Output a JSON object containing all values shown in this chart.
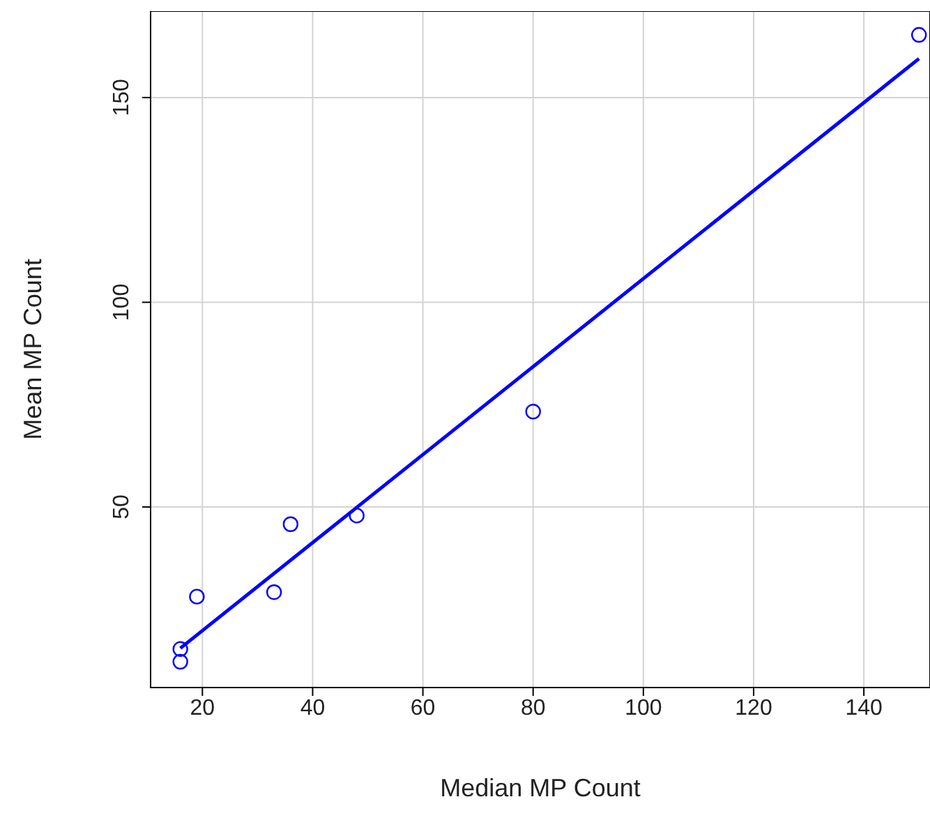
{
  "chart_data": {
    "type": "scatter",
    "xlabel": "Median MP Count",
    "ylabel": "Mean MP Count",
    "xlim": [
      10.6,
      152
    ],
    "ylim": [
      5.9,
      171.1
    ],
    "xticks": [
      20,
      40,
      60,
      80,
      100,
      120,
      140
    ],
    "yticks": [
      50,
      100,
      150
    ],
    "grid": true,
    "marker": "circle",
    "series": [
      {
        "color": "#0000ff",
        "x": [
          16,
          16,
          19,
          33,
          36,
          48,
          80,
          150
        ],
        "values": [
          12.2,
          15.3,
          28.1,
          29.2,
          45.8,
          47.9,
          73.3,
          165.3
        ]
      },
      {
        "type": "line",
        "color": "#0000ff",
        "marker": "none",
        "x": [
          16,
          150
        ],
        "values": [
          15.5,
          159.5
        ]
      }
    ]
  }
}
